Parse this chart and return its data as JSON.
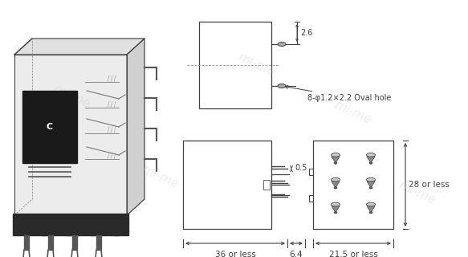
{
  "bg_color": "#ffffff",
  "line_color": "#404040",
  "dim_color": "#404040",
  "annotation_2_6": "2.6",
  "annotation_oval": "8-φ1.2×2.2 Oval hole",
  "annotation_0_5": "0.5",
  "annotation_36": "36 or less",
  "annotation_6_4": "6.4",
  "annotation_28": "28 or less",
  "annotation_21_5": "21.5 or less",
  "watermark": "mi-me"
}
